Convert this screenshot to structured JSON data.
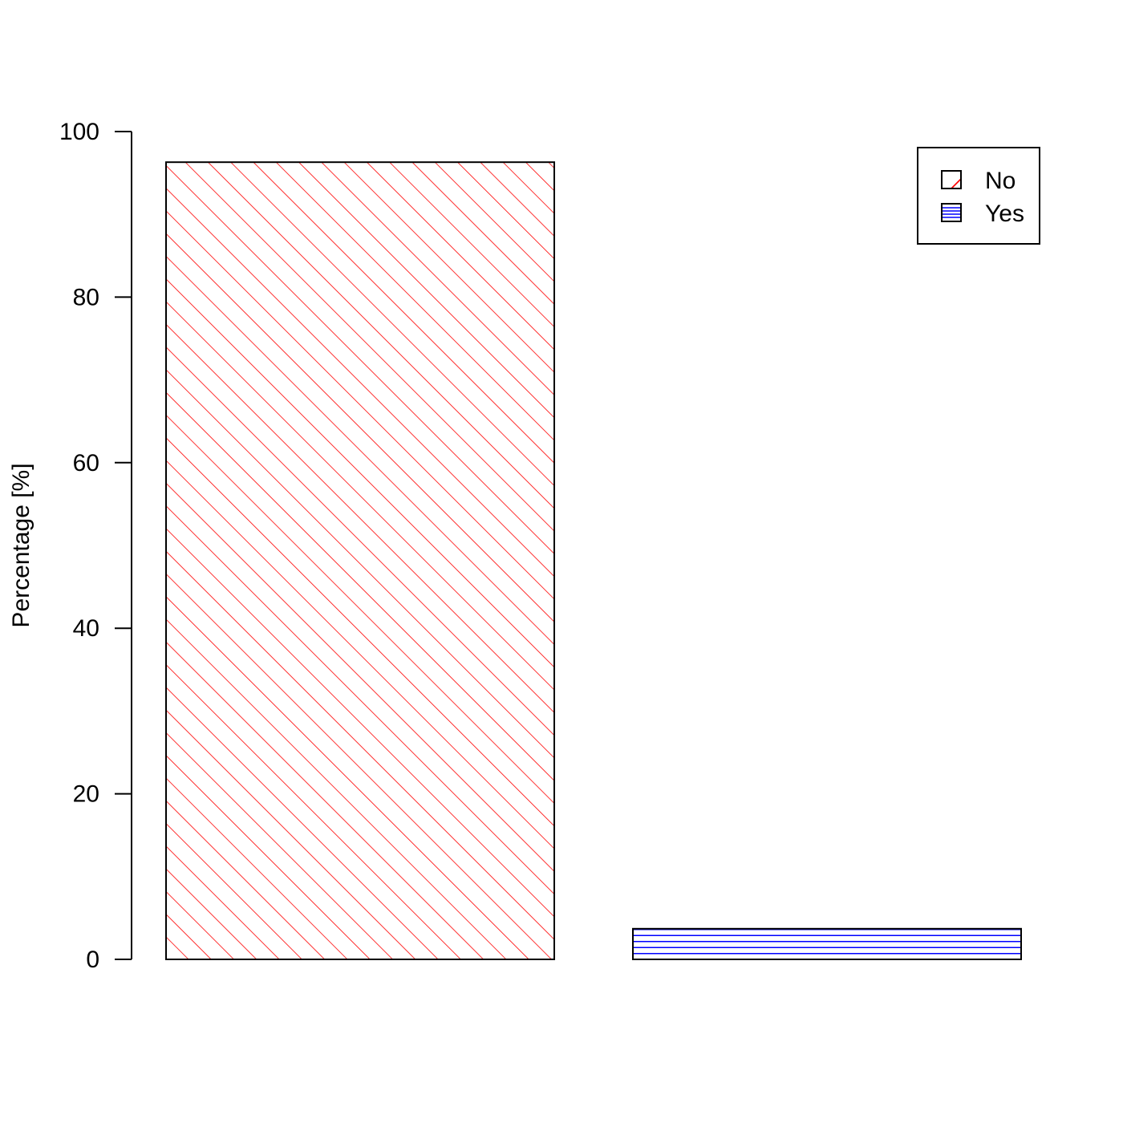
{
  "chart_data": {
    "type": "bar",
    "title": "",
    "xlabel": "",
    "ylabel": "Percentage [%]",
    "ylim": [
      0,
      100
    ],
    "yticks": [
      0,
      20,
      40,
      60,
      80,
      100
    ],
    "grid": false,
    "legend_position": "top-right",
    "series": [
      {
        "name": "No",
        "value": 96.3,
        "color": "#ff0000",
        "pattern": "diagonal-hatch"
      },
      {
        "name": "Yes",
        "value": 3.7,
        "color": "#0000ff",
        "pattern": "horizontal-lines"
      }
    ]
  }
}
